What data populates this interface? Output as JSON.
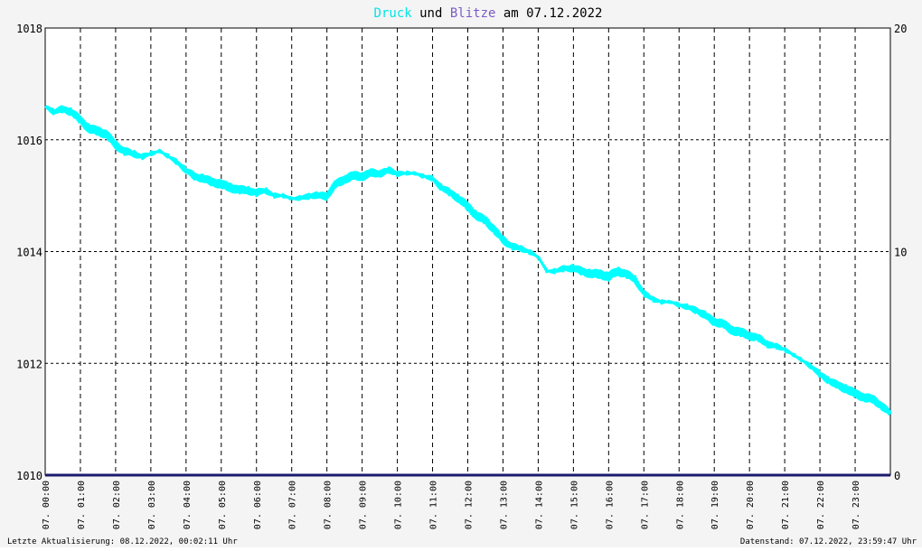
{
  "chart_data": {
    "type": "line",
    "title_parts": [
      {
        "text": "Druck",
        "color": "#00e5e5"
      },
      {
        "text": " und ",
        "color": "#000000"
      },
      {
        "text": "Blitze",
        "color": "#7a5cc7"
      },
      {
        "text": " am 07.12.2022",
        "color": "#000000"
      }
    ],
    "left_axis": {
      "ticks": [
        "1010",
        "1012",
        "1014",
        "1016",
        "1018"
      ],
      "ylim": [
        1010,
        1018
      ]
    },
    "right_axis": {
      "ticks": [
        "0",
        "10",
        "20"
      ],
      "ylim": [
        0,
        20
      ]
    },
    "x_ticks": [
      "07. 00:00",
      "07. 01:00",
      "07. 02:00",
      "07. 03:00",
      "07. 04:00",
      "07. 05:00",
      "07. 06:00",
      "07. 07:00",
      "07. 08:00",
      "07. 09:00",
      "07. 10:00",
      "07. 11:00",
      "07. 12:00",
      "07. 13:00",
      "07. 14:00",
      "07. 15:00",
      "07. 16:00",
      "07. 17:00",
      "07. 18:00",
      "07. 19:00",
      "07. 20:00",
      "07. 21:00",
      "07. 22:00",
      "07. 23:00"
    ],
    "xlim_hours": [
      0,
      24
    ],
    "grid": true,
    "series": [
      {
        "name": "Druck",
        "axis": "left",
        "color": "#00ffff",
        "x": [
          0,
          0.25,
          0.5,
          0.75,
          1,
          1.25,
          1.5,
          1.75,
          2,
          2.25,
          2.5,
          2.75,
          3,
          3.25,
          3.5,
          3.75,
          4,
          4.25,
          4.5,
          4.75,
          5,
          5.25,
          5.5,
          5.75,
          6,
          6.25,
          6.5,
          6.75,
          7,
          7.25,
          7.5,
          7.75,
          8,
          8.25,
          8.5,
          8.75,
          9,
          9.25,
          9.5,
          9.75,
          10,
          10.25,
          10.5,
          10.75,
          11,
          11.25,
          11.5,
          11.75,
          12,
          12.25,
          12.5,
          12.75,
          13,
          13.25,
          13.5,
          13.75,
          14,
          14.25,
          14.5,
          14.75,
          15,
          15.25,
          15.5,
          15.75,
          16,
          16.25,
          16.5,
          16.75,
          17,
          17.25,
          17.5,
          17.75,
          18,
          18.25,
          18.5,
          18.75,
          19,
          19.25,
          19.5,
          19.75,
          20,
          20.25,
          20.5,
          20.75,
          21,
          21.25,
          21.5,
          21.75,
          22,
          22.25,
          22.5,
          22.75,
          23,
          23.25,
          23.5,
          23.75,
          24
        ],
        "values": [
          1016.6,
          1016.5,
          1016.55,
          1016.5,
          1016.35,
          1016.2,
          1016.15,
          1016.1,
          1015.9,
          1015.8,
          1015.75,
          1015.7,
          1015.75,
          1015.8,
          1015.7,
          1015.6,
          1015.45,
          1015.35,
          1015.3,
          1015.25,
          1015.2,
          1015.15,
          1015.1,
          1015.1,
          1015.05,
          1015.1,
          1015.0,
          1015.0,
          1014.95,
          1014.95,
          1015.0,
          1015.0,
          1015.0,
          1015.2,
          1015.3,
          1015.35,
          1015.35,
          1015.4,
          1015.4,
          1015.45,
          1015.4,
          1015.4,
          1015.4,
          1015.35,
          1015.3,
          1015.15,
          1015.05,
          1014.95,
          1014.8,
          1014.65,
          1014.55,
          1014.4,
          1014.2,
          1014.1,
          1014.05,
          1014.0,
          1013.9,
          1013.65,
          1013.65,
          1013.7,
          1013.7,
          1013.65,
          1013.6,
          1013.6,
          1013.55,
          1013.65,
          1013.6,
          1013.5,
          1013.25,
          1013.15,
          1013.1,
          1013.1,
          1013.05,
          1013.0,
          1012.95,
          1012.85,
          1012.75,
          1012.7,
          1012.6,
          1012.55,
          1012.5,
          1012.45,
          1012.35,
          1012.3,
          1012.25,
          1012.15,
          1012.05,
          1011.95,
          1011.8,
          1011.7,
          1011.6,
          1011.55,
          1011.45,
          1011.4,
          1011.35,
          1011.25,
          1011.1
        ]
      },
      {
        "name": "Blitze",
        "axis": "right",
        "color": "#1a1a6e",
        "x": [
          0,
          24
        ],
        "values": [
          0,
          0
        ]
      }
    ],
    "footer_left": "Letzte Aktualisierung: 08.12.2022, 00:02:11 Uhr",
    "footer_right": "Datenstand: 07.12.2022, 23:59:47 Uhr"
  }
}
